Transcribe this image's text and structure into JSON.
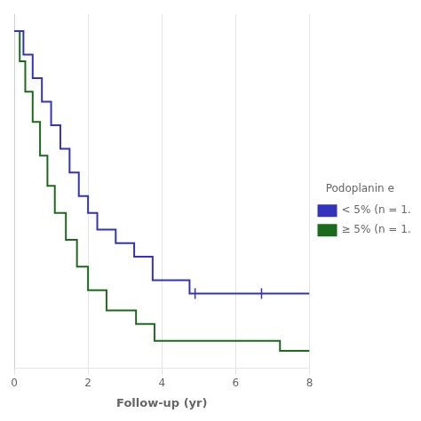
{
  "chart_data": {
    "type": "line",
    "xlabel": "Follow-up (yr)",
    "xlim": [
      0,
      8
    ],
    "ylim": [
      0,
      1.05
    ],
    "xticks": [
      0,
      2,
      4,
      6,
      8
    ],
    "yticks": [],
    "grid": true,
    "tick_labels": "x",
    "legend": "right",
    "legend_title": "Podoplanin e",
    "line_style": "step",
    "series": [
      {
        "name": "< 5% (n = 1…",
        "color": "#3333bb",
        "x": [
          0,
          0.25,
          0.5,
          0.75,
          1.0,
          1.25,
          1.5,
          1.75,
          2.0,
          2.25,
          2.75,
          3.25,
          3.75,
          4.75,
          8.0
        ],
        "values": [
          1.0,
          0.93,
          0.86,
          0.79,
          0.72,
          0.65,
          0.58,
          0.51,
          0.46,
          0.41,
          0.37,
          0.33,
          0.26,
          0.22,
          0.22
        ],
        "censor_x": [
          4.9,
          6.7
        ],
        "censor_y": [
          0.22,
          0.22
        ]
      },
      {
        "name": "≥ 5% (n = 1…",
        "color": "#1a6b1a",
        "x": [
          0,
          0.15,
          0.3,
          0.5,
          0.7,
          0.9,
          1.1,
          1.4,
          1.7,
          2.0,
          2.5,
          3.3,
          3.8,
          6.5,
          7.2,
          8.0
        ],
        "values": [
          1.0,
          0.91,
          0.82,
          0.73,
          0.63,
          0.54,
          0.46,
          0.38,
          0.3,
          0.23,
          0.17,
          0.13,
          0.08,
          0.08,
          0.05,
          0.05
        ]
      }
    ]
  }
}
